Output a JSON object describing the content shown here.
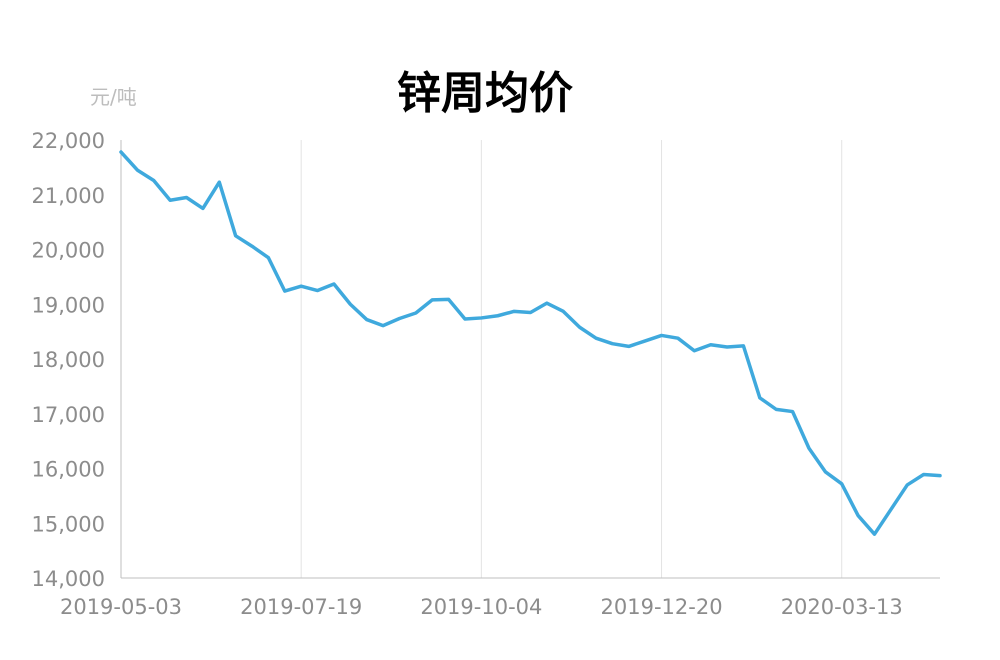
{
  "chart_data": {
    "type": "line",
    "title": "锌周均价",
    "ylabel": "元/吨",
    "xlabel": "",
    "ylim": [
      14000,
      22000
    ],
    "yticks": [
      "22,000",
      "21,000",
      "20,000",
      "19,000",
      "18,000",
      "17,000",
      "16,000",
      "15,000",
      "14,000"
    ],
    "ytick_values": [
      22000,
      21000,
      20000,
      19000,
      18000,
      17000,
      16000,
      15000,
      14000
    ],
    "xticks": [
      "2019-05-03",
      "2019-07-19",
      "2019-10-04",
      "2019-12-20",
      "2020-03-13"
    ],
    "xtick_indices": [
      0,
      11,
      22,
      33,
      44
    ],
    "grid": "vertical",
    "legend": "none",
    "line_color": "#3fa9dd",
    "series": [
      {
        "values": [
          21780,
          21450,
          21260,
          20900,
          20950,
          20750,
          21230,
          20250,
          20060,
          19850,
          19240,
          19330,
          19250,
          19370,
          19000,
          18720,
          18610,
          18740,
          18840,
          19080,
          19090,
          18730,
          18750,
          18790,
          18870,
          18850,
          19020,
          18870,
          18580,
          18380,
          18280,
          18230,
          18330,
          18430,
          18380,
          18150,
          18260,
          18220,
          18240,
          17290,
          17080,
          17040,
          16370,
          15940,
          15720,
          15140,
          14800,
          15250,
          15700,
          15890,
          15870
        ]
      }
    ]
  }
}
